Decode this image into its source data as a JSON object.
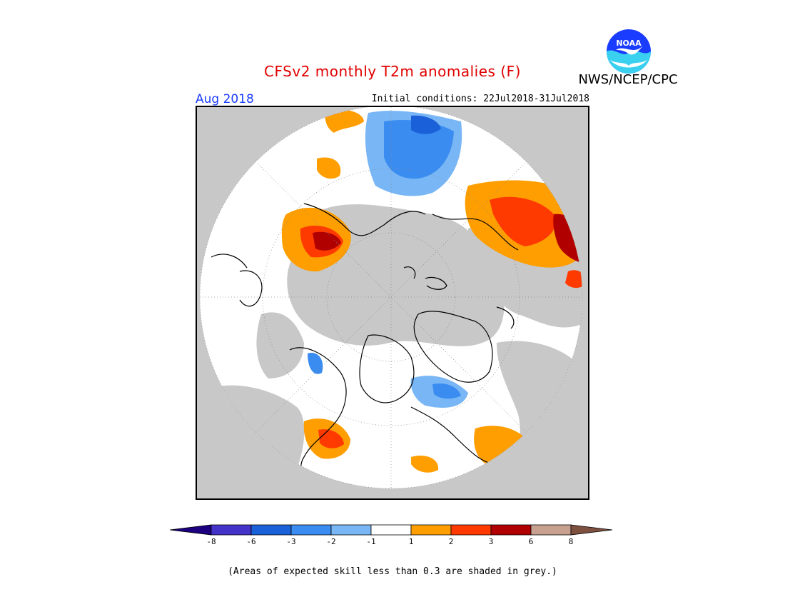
{
  "header": {
    "title": "CFSv2 monthly T2m anomalies (F)",
    "agency": "NWS/NCEP/CPC",
    "logo_text": "NOAA",
    "month": "Aug 2018",
    "initial_conditions": "Initial conditions: 22Jul2018-31Jul2018"
  },
  "map": {
    "projection": "polar-stereographic-north",
    "skill_mask_color": "#c8c8c8",
    "regions": [
      {
        "name": "northern-russia",
        "anomaly_class": "-3 to -2"
      },
      {
        "name": "eastern-europe",
        "anomaly_class": "3 to 6"
      },
      {
        "name": "alaska",
        "anomaly_class": "1 to 2"
      },
      {
        "name": "western-us",
        "anomaly_class": "2 to 3"
      },
      {
        "name": "canadian-archipelago",
        "anomaly_class": "-2 to -1"
      },
      {
        "name": "greenland",
        "anomaly_class": "-1 to 1"
      }
    ]
  },
  "legend": {
    "colors": [
      "#1d0080",
      "#4433c8",
      "#1a60d8",
      "#3a8cf0",
      "#79b6f5",
      "#ffffff",
      "#ff9e00",
      "#ff3a00",
      "#b00000",
      "#c8a090",
      "#7d5040"
    ],
    "ticks": [
      "-8",
      "-6",
      "-3",
      "-2",
      "-1",
      "1",
      "2",
      "3",
      "6",
      "8"
    ]
  },
  "footnote": "(Areas of expected skill less than 0.3 are shaded in grey.)"
}
